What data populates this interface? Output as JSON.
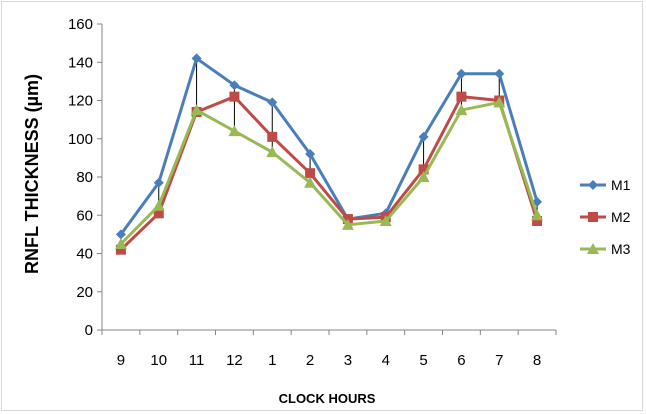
{
  "chart_data": {
    "type": "line",
    "title": "",
    "xlabel": "CLOCK HOURS",
    "ylabel": "RNFL THICKNESS (µm)",
    "categories": [
      "9",
      "10",
      "11",
      "12",
      "1",
      "2",
      "3",
      "4",
      "5",
      "6",
      "7",
      "8"
    ],
    "ylim": [
      0,
      160
    ],
    "yticks": [
      0,
      20,
      40,
      60,
      80,
      100,
      120,
      140,
      160
    ],
    "grid": false,
    "legend_position": "right",
    "drop_lines": true,
    "series": [
      {
        "name": "M1",
        "color": "#4a7ebb",
        "marker": "diamond",
        "values": [
          50,
          77,
          142,
          128,
          119,
          92,
          58,
          61,
          101,
          134,
          134,
          67
        ]
      },
      {
        "name": "M2",
        "color": "#be4b48",
        "marker": "square",
        "values": [
          42,
          61,
          114,
          122,
          101,
          82,
          58,
          59,
          84,
          122,
          120,
          57
        ]
      },
      {
        "name": "M3",
        "color": "#98b954",
        "marker": "triangle",
        "values": [
          45,
          65,
          115,
          104,
          93,
          77,
          55,
          57,
          80,
          115,
          119,
          60
        ]
      }
    ]
  }
}
